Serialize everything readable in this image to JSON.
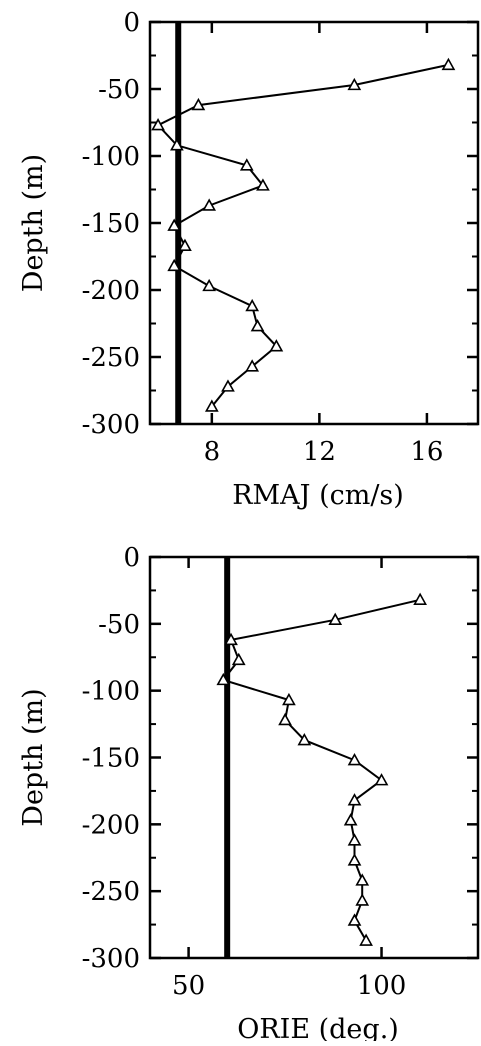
{
  "chart_data": [
    {
      "type": "line",
      "xlabel": "RMAJ (cm/s)",
      "ylabel": "Depth (m)",
      "xlim": [
        5.7,
        17.9
      ],
      "ylim": [
        -300,
        0
      ],
      "xticks": [
        8,
        12,
        16
      ],
      "yticks": [
        0,
        -50,
        -100,
        -150,
        -200,
        -250,
        -300
      ],
      "grid": false,
      "reference_line_x": 6.75,
      "marker": "triangle",
      "series": [
        {
          "x": [
            16.8,
            13.3,
            7.5,
            6.0,
            6.7,
            9.3,
            9.9,
            7.9,
            6.6,
            7.0,
            6.6,
            7.9,
            9.5,
            9.7,
            10.4,
            9.5,
            8.6,
            8.0
          ],
          "y": [
            -32,
            -47,
            -62,
            -77,
            -92,
            -107,
            -122,
            -137,
            -152,
            -167,
            -182,
            -197,
            -212,
            -227,
            -242,
            -257,
            -272,
            -287
          ]
        }
      ]
    },
    {
      "type": "line",
      "xlabel": "ORIE (deg.)",
      "ylabel": "Depth (m)",
      "xlim": [
        40,
        125
      ],
      "ylim": [
        -300,
        0
      ],
      "xticks": [
        50,
        100
      ],
      "yticks": [
        0,
        -50,
        -100,
        -150,
        -200,
        -250,
        -300
      ],
      "grid": false,
      "reference_line_x": 60,
      "marker": "triangle",
      "series": [
        {
          "x": [
            110,
            88,
            61,
            63,
            59,
            76,
            75,
            80,
            93,
            100,
            93,
            92,
            93,
            93,
            95,
            95,
            93,
            96
          ],
          "y": [
            -32,
            -47,
            -62,
            -77,
            -92,
            -107,
            -122,
            -137,
            -152,
            -167,
            -182,
            -197,
            -212,
            -227,
            -242,
            -257,
            -272,
            -287
          ]
        }
      ]
    }
  ]
}
